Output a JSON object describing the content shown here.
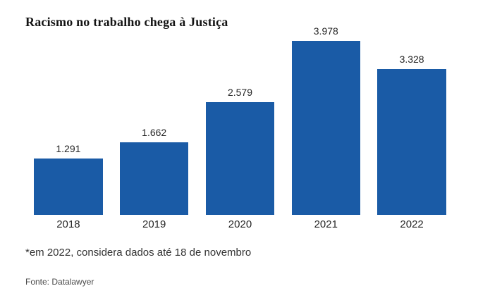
{
  "title": "Racismo no trabalho chega à Justiça",
  "footnote": "*em 2022, considera dados até 18 de novembro",
  "source": "Fonte: Datalawyer",
  "colors": {
    "bar": "#1A5BA6",
    "title_text": "#141414",
    "label_text": "#262626",
    "footnote_text": "#333333",
    "source_text": "#4a4a4a",
    "background": "#ffffff"
  },
  "chart_data": {
    "type": "bar",
    "title": "Racismo no trabalho chega à Justiça",
    "categories": [
      "2018",
      "2019",
      "2020",
      "2021",
      "2022"
    ],
    "values": [
      1291,
      1662,
      2579,
      3978,
      3328
    ],
    "value_labels": [
      "1.291",
      "1.662",
      "2.579",
      "3.978",
      "3.328"
    ],
    "xlabel": "",
    "ylabel": "",
    "ylim": [
      0,
      3978
    ],
    "grid": false,
    "legend": "none",
    "bar_color": "#1A5BA6",
    "annotations": [
      "*em 2022, considera dados até 18 de novembro",
      "Fonte: Datalawyer"
    ]
  }
}
